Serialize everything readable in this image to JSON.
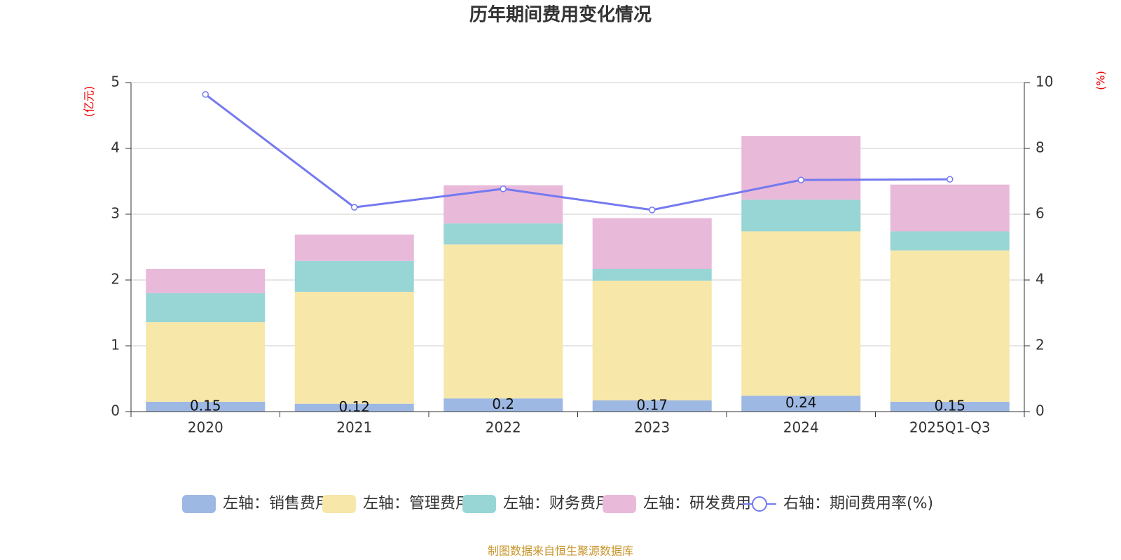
{
  "chart_data": {
    "type": "bar",
    "title": "历年期间费用变化情况",
    "y_label": "(亿元)",
    "y2_label": "(%)",
    "categories": [
      "2020",
      "2021",
      "2022",
      "2023",
      "2024",
      "2025Q1-Q3"
    ],
    "ylim": [
      0,
      5
    ],
    "yticks": [
      0,
      1,
      2,
      3,
      4,
      5
    ],
    "y2lim": [
      0,
      10
    ],
    "y2ticks": [
      0,
      2,
      4,
      6,
      8,
      10
    ],
    "grid": true,
    "series": [
      {
        "name": "左轴：销售费用",
        "type": "bar",
        "color": "#9db8e3",
        "values": [
          0.15,
          0.12,
          0.2,
          0.17,
          0.24,
          0.15
        ],
        "show_labels": true
      },
      {
        "name": "左轴：管理费用",
        "type": "bar",
        "color": "#f7e7a8",
        "values": [
          1.21,
          1.7,
          2.34,
          1.82,
          2.5,
          2.3
        ]
      },
      {
        "name": "左轴：财务费用",
        "type": "bar",
        "color": "#98d5d5",
        "values": [
          0.44,
          0.47,
          0.32,
          0.18,
          0.48,
          0.29
        ]
      },
      {
        "name": "左轴：研发费用",
        "type": "bar",
        "color": "#e8b9d9",
        "values": [
          0.37,
          0.4,
          0.58,
          0.77,
          0.97,
          0.71
        ]
      },
      {
        "name": "右轴：期间费用率(%)",
        "type": "line",
        "axis": "y2",
        "color": "#7479f0",
        "values": [
          9.64,
          6.21,
          6.77,
          6.13,
          7.04,
          7.06
        ]
      }
    ],
    "source": "制图数据来自恒生聚源数据库"
  }
}
